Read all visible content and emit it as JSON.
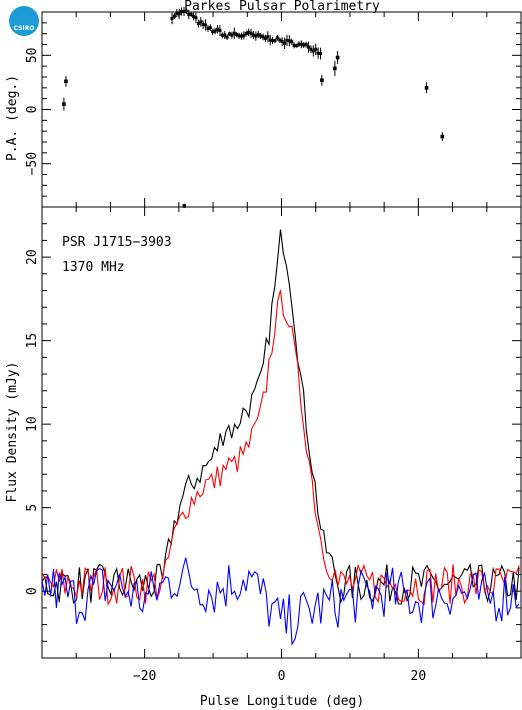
{
  "logo": {
    "text": "CSIRO",
    "color": "#1E9BD7"
  },
  "title": "Parkes Pulsar Polarimetry",
  "annotations": [
    "PSR J1715−3903",
    "1370 MHz"
  ],
  "colors": {
    "total": "#000000",
    "linear": "#ff0000",
    "circular": "#0000ff"
  },
  "chart_data": [
    {
      "type": "scatter",
      "panel": "position-angle",
      "ylabel": "P.A. (deg.)",
      "xlim": [
        -35,
        35
      ],
      "ylim": [
        -90,
        90
      ],
      "yticks": [
        -50,
        0,
        50
      ],
      "xticks": [
        -20,
        0,
        20
      ],
      "points": [
        {
          "x": -31.8,
          "y": 5,
          "err": 6
        },
        {
          "x": -31.5,
          "y": 26,
          "err": 5
        },
        {
          "x": -14.2,
          "y": -89,
          "err": 2
        },
        {
          "x": 21.2,
          "y": 20,
          "err": 5
        },
        {
          "x": 23.5,
          "y": -25,
          "err": 4
        },
        {
          "x": 5.9,
          "y": 27,
          "err": 5
        },
        {
          "x": 7.8,
          "y": 38,
          "err": 7
        },
        {
          "x": 8.2,
          "y": 48,
          "err": 6
        }
      ],
      "curve_x": [
        -16,
        -15,
        -14,
        -13,
        -12,
        -11,
        -10,
        -9,
        -8,
        -7,
        -6,
        -5,
        -4,
        -3,
        -2,
        -1,
        0,
        1,
        2,
        3,
        4,
        5,
        6
      ],
      "curve_y": [
        86,
        89,
        90,
        86,
        80,
        76,
        73,
        72,
        67,
        70,
        68,
        70,
        68,
        67,
        66,
        65,
        63,
        62,
        61,
        59,
        58,
        55,
        52
      ]
    },
    {
      "type": "line",
      "panel": "profile",
      "xlabel": "Pulse Longitude (deg)",
      "ylabel": "Flux Density (mJy)",
      "xlim": [
        -35,
        35
      ],
      "ylim": [
        -4,
        23
      ],
      "xticks": [
        -20,
        0,
        20
      ],
      "yticks": [
        0,
        5,
        10,
        15,
        20
      ],
      "series": [
        {
          "key": "total",
          "x": [
            -17,
            -16,
            -15,
            -14,
            -13,
            -12,
            -11,
            -10,
            -9,
            -8,
            -7,
            -6,
            -5,
            -4,
            -3,
            -2,
            -1,
            0,
            1,
            2,
            3,
            4,
            5,
            6,
            7,
            8
          ],
          "y": [
            1.5,
            3.5,
            5.0,
            6.0,
            6.5,
            7.0,
            7.5,
            8.0,
            9.0,
            10.0,
            9.5,
            10.5,
            11.0,
            11.5,
            12.5,
            15.0,
            18.0,
            21.5,
            19.5,
            16.0,
            12.0,
            9.0,
            6.0,
            3.0,
            2.0,
            1.0
          ]
        },
        {
          "key": "linear",
          "x": [
            -17,
            -16,
            -15,
            -14,
            -13,
            -12,
            -11,
            -10,
            -9,
            -8,
            -7,
            -6,
            -5,
            -4,
            -3,
            -2,
            -1,
            0,
            1,
            2,
            3,
            4,
            5,
            6,
            7,
            8
          ],
          "y": [
            1.0,
            3.0,
            4.0,
            5.0,
            5.5,
            6.0,
            6.5,
            6.5,
            7.0,
            7.5,
            7.5,
            8.0,
            8.5,
            9.5,
            10.5,
            13.0,
            16.0,
            17.5,
            16.5,
            14.0,
            11.0,
            8.0,
            5.0,
            2.5,
            1.5,
            1.0
          ]
        },
        {
          "key": "circular",
          "noise": true,
          "x": [
            -35,
            -30,
            -25,
            -20,
            -15,
            -10,
            -5,
            0,
            5,
            10,
            15,
            20,
            25,
            30,
            35
          ],
          "y": [
            0.5,
            -0.5,
            0.5,
            -0.5,
            1.0,
            0.0,
            1.0,
            -2.0,
            -1.0,
            -0.5,
            0.0,
            -0.5,
            0.0,
            -0.5,
            0.0
          ]
        }
      ]
    }
  ]
}
